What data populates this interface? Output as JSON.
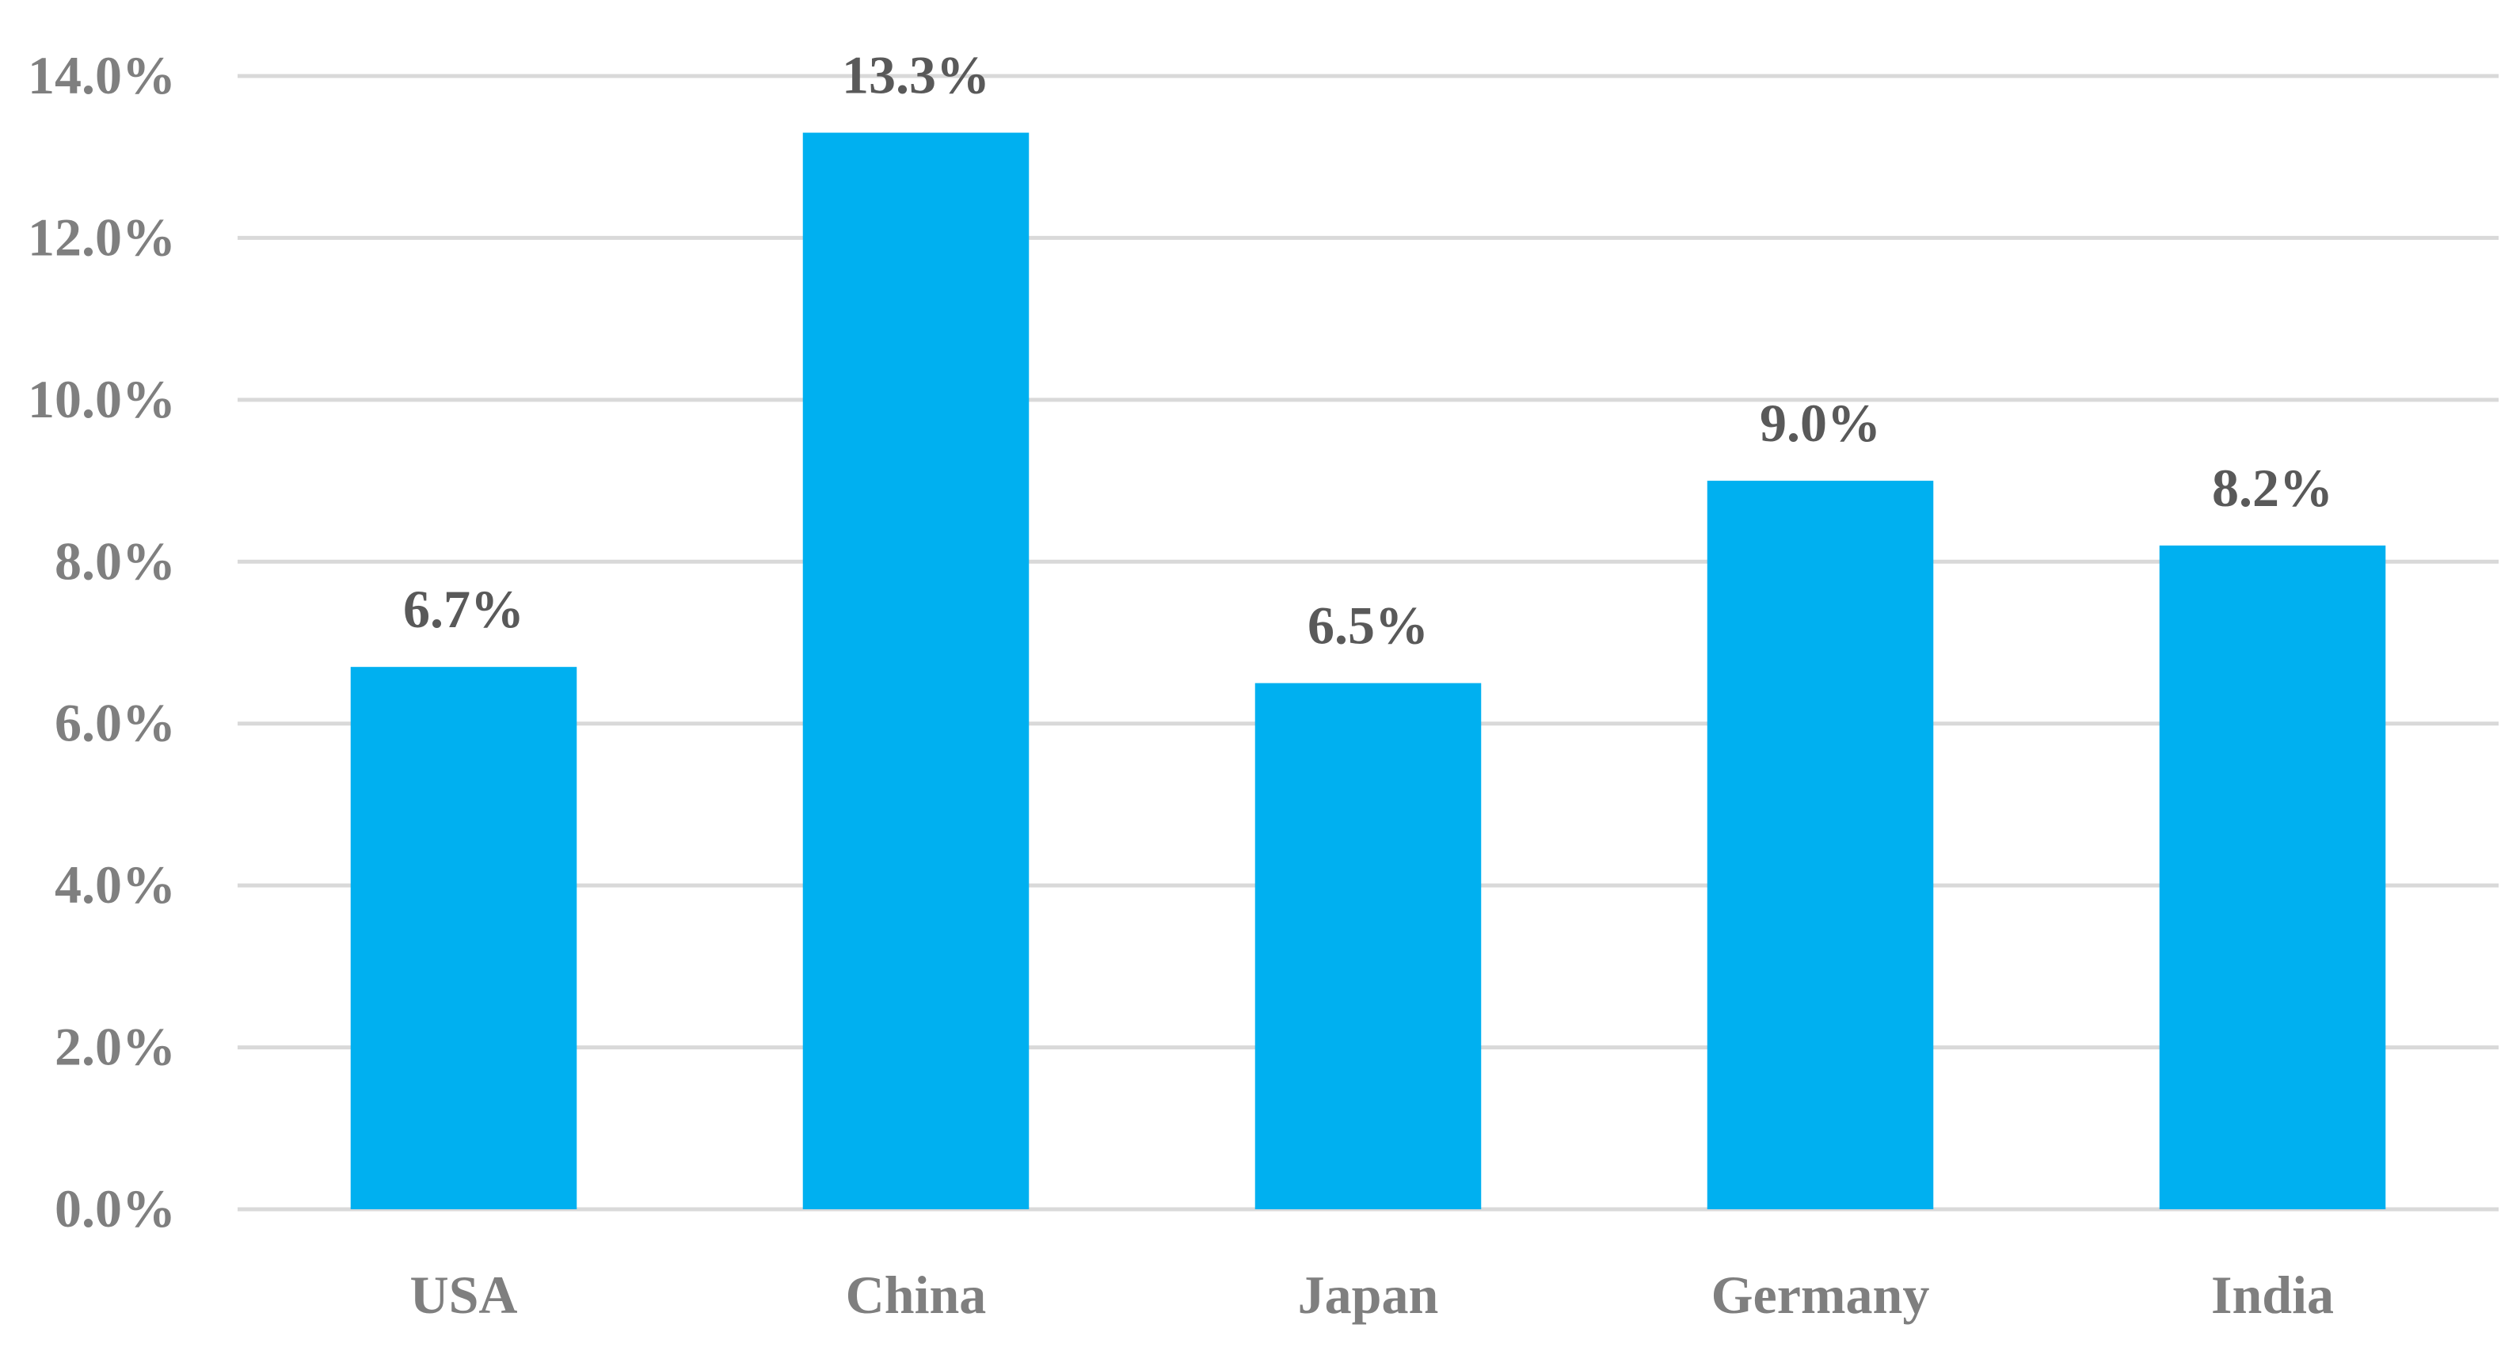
{
  "chart_data": {
    "type": "bar",
    "categories": [
      "USA",
      "China",
      "Japan",
      "Germany",
      "India"
    ],
    "values": [
      6.7,
      13.3,
      6.5,
      9.0,
      8.2
    ],
    "data_labels": [
      "6.7%",
      "13.3%",
      "6.5%",
      "9.0%",
      "8.2%"
    ],
    "y_ticks": [
      0,
      2,
      4,
      6,
      8,
      10,
      12,
      14
    ],
    "y_tick_labels": [
      "0.0%",
      "2.0%",
      "4.0%",
      "6.0%",
      "8.0%",
      "10.0%",
      "12.0%",
      "14.0%"
    ],
    "ylim": [
      0,
      14
    ],
    "title": "",
    "xlabel": "",
    "ylabel": "",
    "grid": true,
    "legend": "none",
    "colors": {
      "bar": "#00b0f0",
      "gridline": "#d9d9d9",
      "axis_text": "#7f7f7f",
      "data_label_text": "#595959"
    }
  }
}
